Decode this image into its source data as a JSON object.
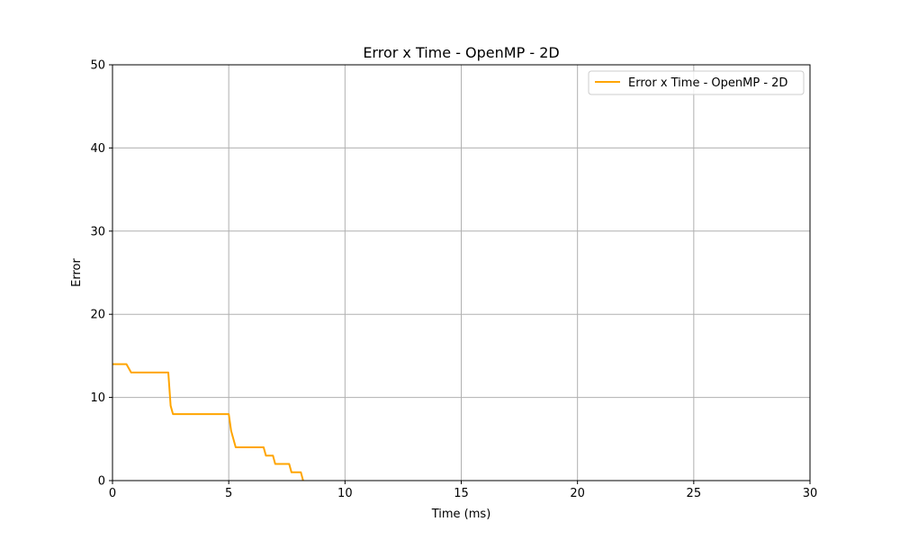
{
  "chart_data": {
    "type": "line",
    "title": "Error x Time - OpenMP - 2D",
    "xlabel": "Time (ms)",
    "ylabel": "Error",
    "xlim": [
      0,
      30
    ],
    "ylim": [
      0,
      50
    ],
    "xticks": [
      0,
      5,
      10,
      15,
      20,
      25,
      30
    ],
    "yticks": [
      0,
      10,
      20,
      30,
      40,
      50
    ],
    "grid": true,
    "legend_position": "top-right",
    "series": [
      {
        "name": "Error x Time - OpenMP - 2D",
        "color": "#ffa500",
        "x": [
          0,
          0.6,
          0.8,
          2.4,
          2.5,
          2.6,
          5.0,
          5.1,
          5.3,
          6.5,
          6.6,
          6.9,
          7.0,
          7.6,
          7.7,
          8.1,
          8.2
        ],
        "y": [
          14,
          14,
          13,
          13,
          9,
          8,
          8,
          6,
          4,
          4,
          3,
          3,
          2,
          2,
          1,
          1,
          0
        ]
      }
    ]
  }
}
